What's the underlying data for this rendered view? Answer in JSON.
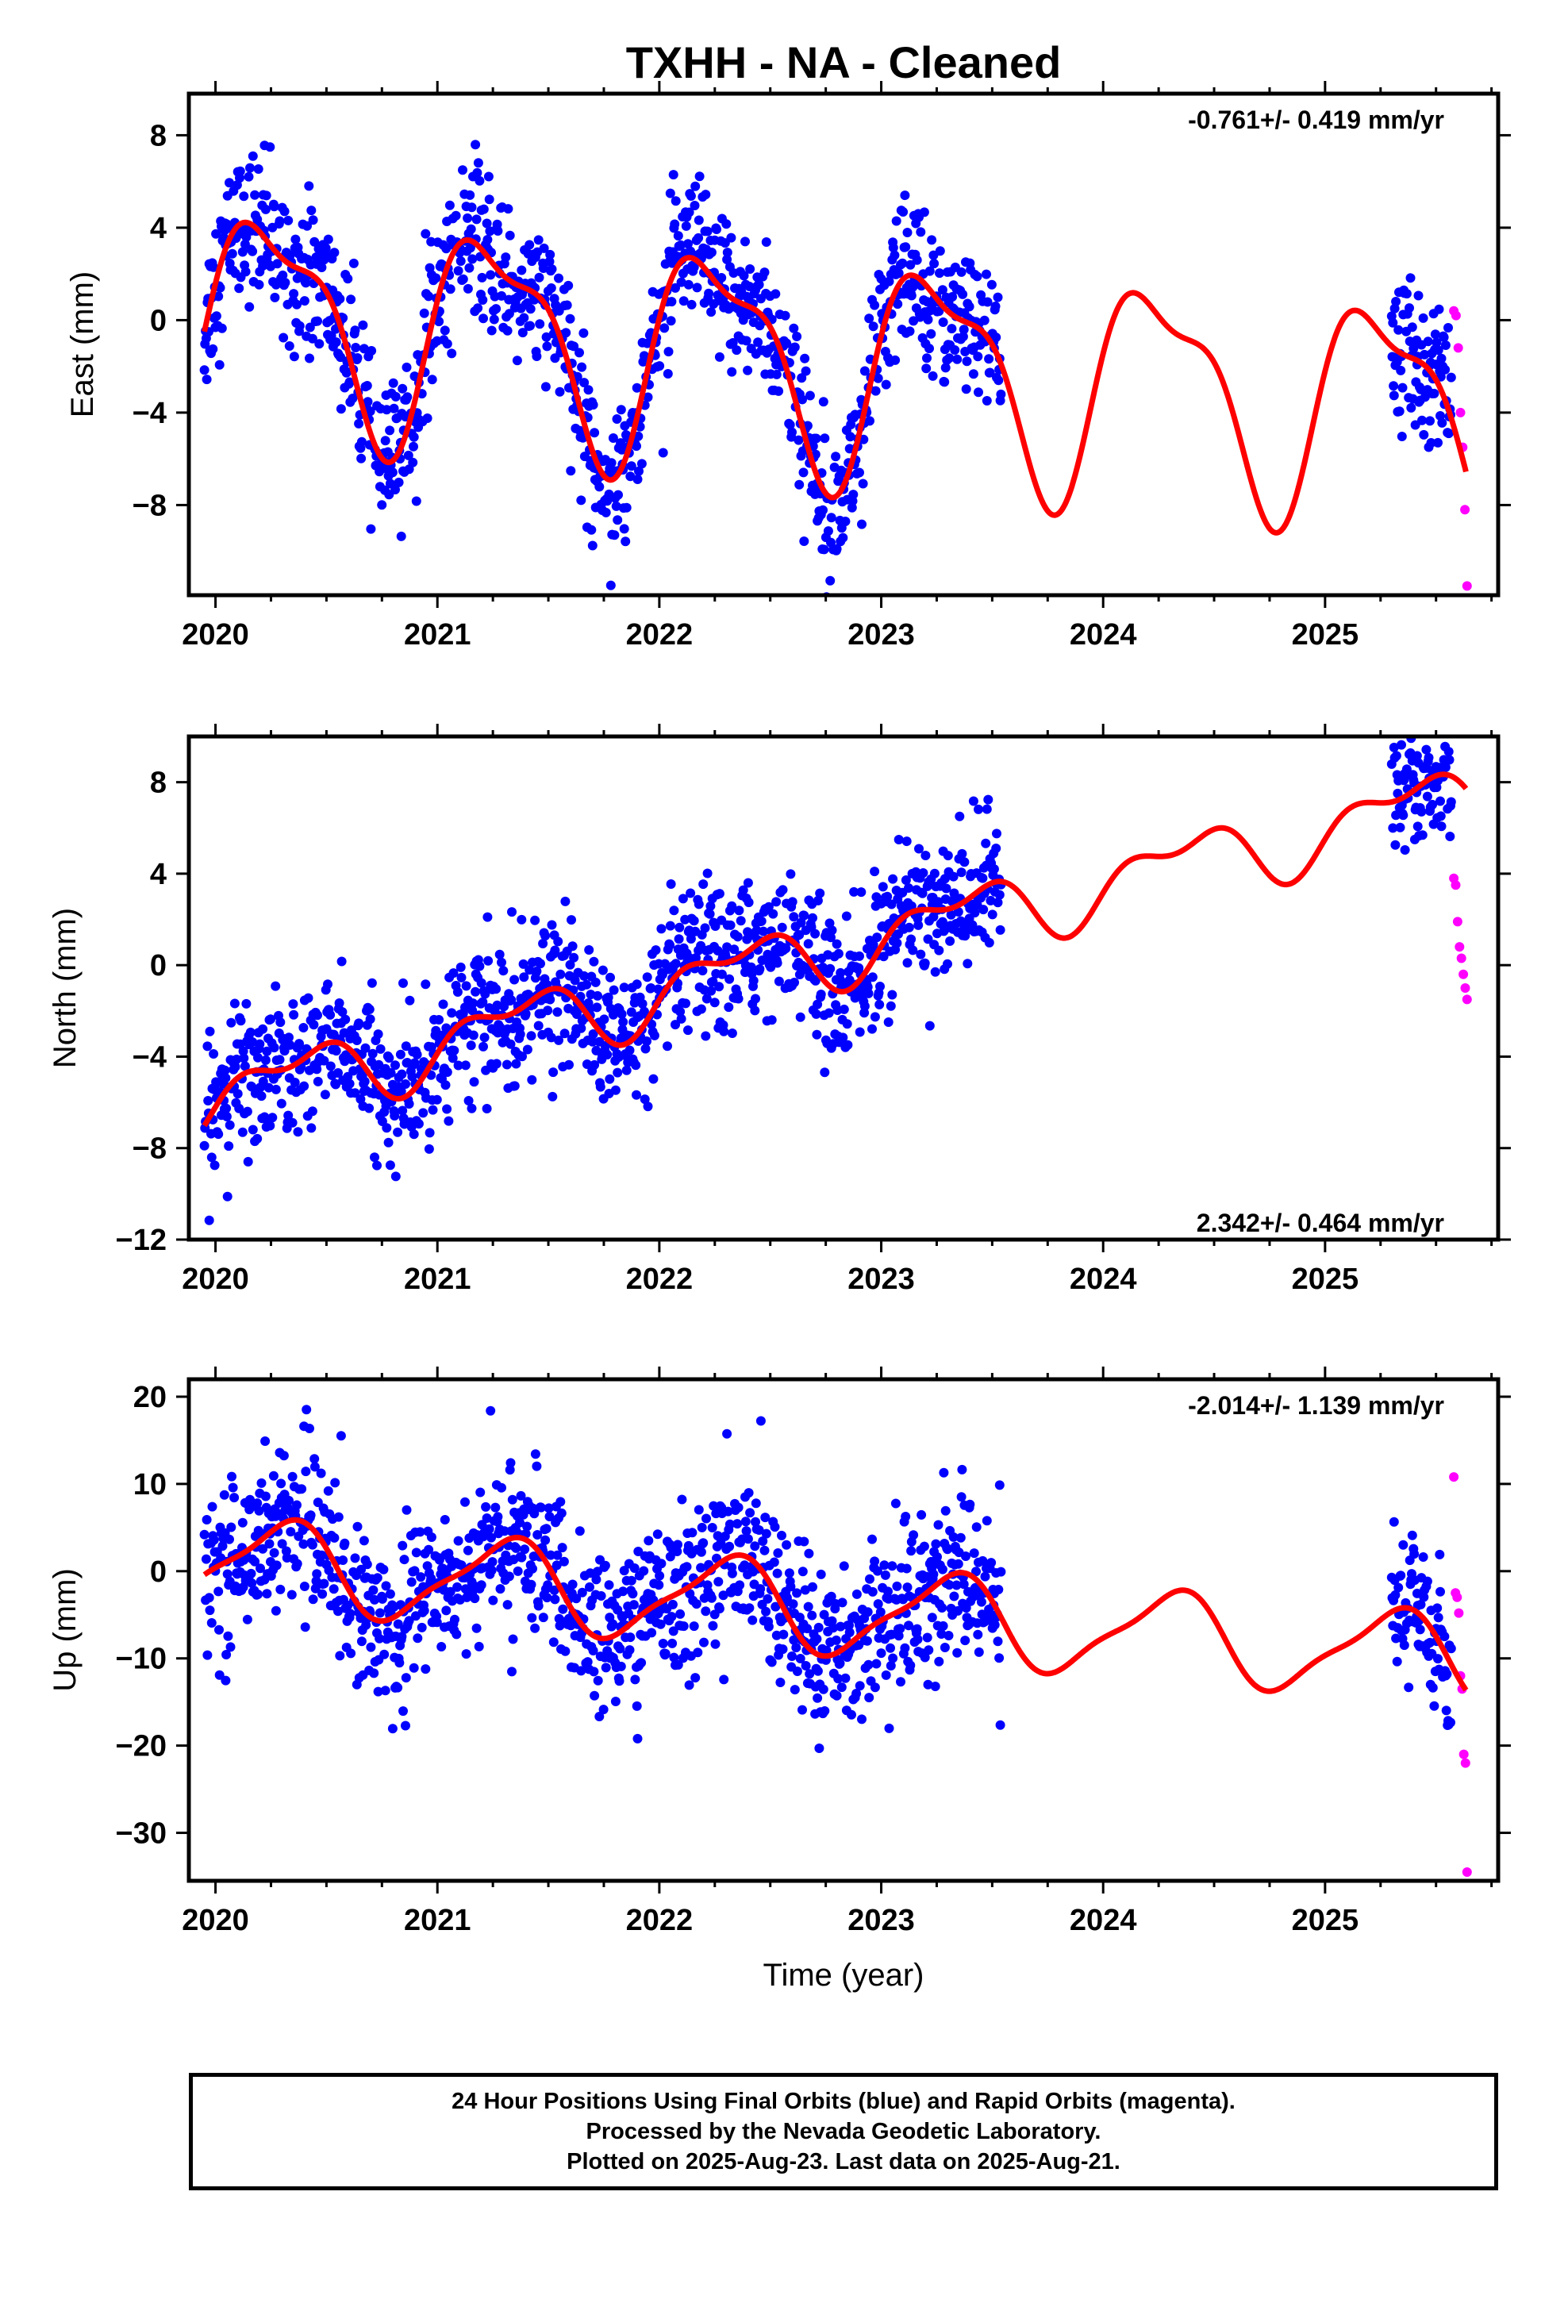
{
  "footer": {
    "line1": "24 Hour Positions Using Final Orbits (blue) and Rapid Orbits (magenta).",
    "line2": "Processed by the Nevada Geodetic Laboratory.",
    "line3": "Plotted on 2025-Aug-23. Last data on 2025-Aug-21."
  },
  "colors": {
    "final_orbits": "#0000ff",
    "rapid_orbits": "#ff00ff",
    "model_fit": "#ff0000",
    "frame": "#000000"
  },
  "chart_data": [
    {
      "type": "scatter",
      "title": "TXHH  - NA - Cleaned",
      "ylabel": "East (mm)",
      "xlabel": "",
      "rate": "-0.761+/- 0.419 mm/yr",
      "xlim": [
        2019.88,
        2025.78
      ],
      "ylim": [
        -11.9,
        9.8
      ],
      "xticks": [
        "2020",
        "2021",
        "2022",
        "2023",
        "2024",
        "2025"
      ],
      "yticks": [
        "8",
        "4",
        "0",
        "-4",
        "-8"
      ],
      "grid": false,
      "model": {
        "offset": 0.3,
        "trend": -0.761,
        "annual_cos": 0.0,
        "annual_sin": 4.4,
        "semiannual_cos": 1.3,
        "semiannual_sin": 0.9
      },
      "final_orbit_segments": [
        [
          2019.95,
          2023.54
        ],
        [
          2025.3,
          2025.57
        ]
      ],
      "rapid_orbit_range": [
        2025.58,
        2025.64
      ],
      "series": [
        {
          "name": "Final Orbits (blue)",
          "note_samples": "approx. daily positions, scatter ~1.6 mm about model"
        },
        {
          "name": "Rapid Orbits (magenta)",
          "values_sample": [
            0.4,
            0.2,
            -1.2,
            -4.0,
            -5.5,
            -8.2,
            -11.5
          ]
        }
      ]
    },
    {
      "type": "scatter",
      "title": "",
      "ylabel": "North (mm)",
      "xlabel": "",
      "rate": "2.342+/- 0.464 mm/yr",
      "xlim": [
        2019.88,
        2025.78
      ],
      "ylim": [
        -12.0,
        10.0
      ],
      "xticks": [
        "2020",
        "2021",
        "2022",
        "2023",
        "2024",
        "2025"
      ],
      "yticks": [
        "8",
        "4",
        "0",
        "-4",
        "-8",
        "-12"
      ],
      "grid": false,
      "model": {
        "offset": -5.8,
        "trend": 2.342,
        "annual_cos": -0.8,
        "annual_sin": 1.0,
        "semiannual_cos": 0.4,
        "semiannual_sin": 0.6
      },
      "final_orbit_segments": [
        [
          2019.95,
          2023.54
        ],
        [
          2025.3,
          2025.57
        ]
      ],
      "rapid_orbit_range": [
        2025.58,
        2025.64
      ],
      "series": [
        {
          "name": "Final Orbits (blue)",
          "note_samples": "approx. daily positions, scatter ~1.5 mm about model"
        },
        {
          "name": "Rapid Orbits (magenta)",
          "values_sample": [
            3.8,
            3.5,
            1.9,
            0.8,
            0.3,
            -0.4,
            -1.0,
            -1.5
          ]
        }
      ]
    },
    {
      "type": "scatter",
      "title": "",
      "ylabel": "Up (mm)",
      "xlabel": "Time (year)",
      "rate": "-2.014+/- 1.139 mm/yr",
      "xlim": [
        2019.88,
        2025.78
      ],
      "ylim": [
        -35.5,
        22.0
      ],
      "xticks": [
        "2020",
        "2021",
        "2022",
        "2023",
        "2024",
        "2025"
      ],
      "yticks": [
        "20",
        "10",
        "0",
        "-10",
        "-20",
        "-30"
      ],
      "grid": false,
      "model": {
        "offset": 1.2,
        "trend": -2.014,
        "annual_cos": -1.6,
        "annual_sin": 4.6,
        "semiannual_cos": 0.8,
        "semiannual_sin": -1.0
      },
      "final_orbit_segments": [
        [
          2019.95,
          2023.54
        ],
        [
          2025.3,
          2025.57
        ]
      ],
      "rapid_orbit_range": [
        2025.58,
        2025.64
      ],
      "series": [
        {
          "name": "Final Orbits (blue)",
          "note_samples": "approx. daily positions, scatter ~4.5 mm about model"
        },
        {
          "name": "Rapid Orbits (magenta)",
          "values_sample": [
            10.8,
            -2.5,
            -3.0,
            -4.8,
            -12.0,
            -13.5,
            -21.0,
            -22.0,
            -34.5
          ]
        }
      ]
    }
  ]
}
